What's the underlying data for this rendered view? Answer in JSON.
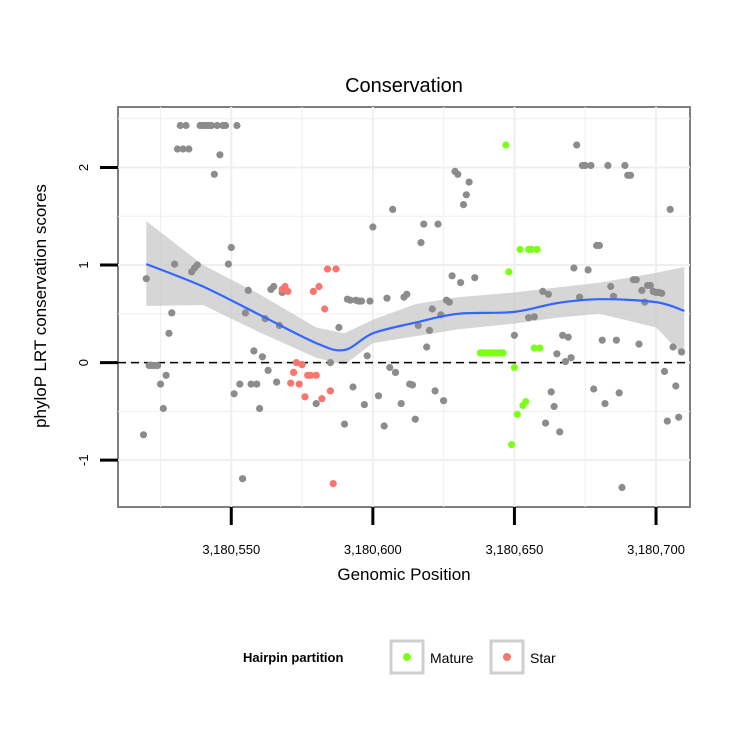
{
  "chart_data": {
    "type": "scatter",
    "title": "Conservation",
    "xlabel": "Genomic Position",
    "ylabel": "phyloP LRT conservation scores",
    "xlim": [
      3180510,
      3180712
    ],
    "ylim": [
      -1.48,
      2.62
    ],
    "x_ticks": [
      {
        "value": 3180550,
        "label": "3,180,550"
      },
      {
        "value": 3180600,
        "label": "3,180,600"
      },
      {
        "value": 3180650,
        "label": "3,180,650"
      },
      {
        "value": 3180700,
        "label": "3,180,700"
      }
    ],
    "y_ticks": [
      {
        "value": -1,
        "label": "-1"
      },
      {
        "value": 0,
        "label": "0"
      },
      {
        "value": 1,
        "label": "1"
      },
      {
        "value": 2,
        "label": "2"
      }
    ],
    "reference_line": {
      "y": 0,
      "style": "dashed"
    },
    "legend": {
      "title": "Hairpin partition",
      "position": "bottom",
      "entries": [
        {
          "label": "Mature",
          "color": "#7cff1a"
        },
        {
          "label": "Star",
          "color": "#f8766d"
        }
      ]
    },
    "colors": {
      "other": "#8c8c8c",
      "Mature": "#7cff1a",
      "Star": "#f8766d",
      "smooth_line": "#3366ff",
      "ribbon": "#c8c8c8"
    },
    "series": [
      {
        "name": "Other",
        "points": [
          [
            3180519,
            -0.74
          ],
          [
            3180520,
            0.86
          ],
          [
            3180521,
            -0.03
          ],
          [
            3180522,
            -0.03
          ],
          [
            3180523,
            -0.03
          ],
          [
            3180524,
            -0.03
          ],
          [
            3180525,
            -0.22
          ],
          [
            3180526,
            -0.47
          ],
          [
            3180527,
            -0.13
          ],
          [
            3180528,
            0.3
          ],
          [
            3180529,
            0.51
          ],
          [
            3180530,
            1.01
          ],
          [
            3180531,
            2.19
          ],
          [
            3180532,
            2.43
          ],
          [
            3180533,
            2.19
          ],
          [
            3180534,
            2.43
          ],
          [
            3180535,
            2.19
          ],
          [
            3180536,
            0.93
          ],
          [
            3180537,
            0.97
          ],
          [
            3180538,
            1.0
          ],
          [
            3180539,
            2.43
          ],
          [
            3180540,
            2.43
          ],
          [
            3180541,
            2.43
          ],
          [
            3180542,
            2.43
          ],
          [
            3180543,
            2.43
          ],
          [
            3180544,
            1.93
          ],
          [
            3180545,
            2.43
          ],
          [
            3180546,
            2.13
          ],
          [
            3180547,
            2.43
          ],
          [
            3180548,
            2.43
          ],
          [
            3180549,
            1.01
          ],
          [
            3180550,
            1.18
          ],
          [
            3180551,
            -0.32
          ],
          [
            3180552,
            2.43
          ],
          [
            3180553,
            -0.22
          ],
          [
            3180554,
            -1.19
          ],
          [
            3180555,
            0.51
          ],
          [
            3180556,
            0.74
          ],
          [
            3180557,
            -0.22
          ],
          [
            3180558,
            0.12
          ],
          [
            3180559,
            -0.22
          ],
          [
            3180560,
            -0.47
          ],
          [
            3180561,
            0.06
          ],
          [
            3180562,
            0.45
          ],
          [
            3180563,
            -0.08
          ],
          [
            3180564,
            0.75
          ],
          [
            3180565,
            0.78
          ],
          [
            3180566,
            -0.2
          ],
          [
            3180567,
            0.38
          ],
          [
            3180568,
            0.72
          ],
          [
            3180575,
            -0.02
          ],
          [
            3180580,
            -0.42
          ],
          [
            3180585,
            0.0
          ],
          [
            3180588,
            0.36
          ],
          [
            3180590,
            -0.63
          ],
          [
            3180591,
            0.65
          ],
          [
            3180592,
            0.64
          ],
          [
            3180593,
            -0.25
          ],
          [
            3180594,
            0.64
          ],
          [
            3180595,
            0.63
          ],
          [
            3180596,
            0.63
          ],
          [
            3180597,
            -0.43
          ],
          [
            3180598,
            0.07
          ],
          [
            3180599,
            0.63
          ],
          [
            3180600,
            1.39
          ],
          [
            3180602,
            -0.34
          ],
          [
            3180604,
            -0.65
          ],
          [
            3180605,
            0.66
          ],
          [
            3180606,
            -0.05
          ],
          [
            3180607,
            1.57
          ],
          [
            3180608,
            -0.1
          ],
          [
            3180610,
            -0.42
          ],
          [
            3180611,
            0.67
          ],
          [
            3180612,
            0.7
          ],
          [
            3180613,
            -0.22
          ],
          [
            3180614,
            -0.23
          ],
          [
            3180615,
            -0.58
          ],
          [
            3180616,
            0.38
          ],
          [
            3180617,
            1.23
          ],
          [
            3180618,
            1.42
          ],
          [
            3180619,
            0.16
          ],
          [
            3180620,
            0.33
          ],
          [
            3180621,
            0.55
          ],
          [
            3180622,
            -0.29
          ],
          [
            3180623,
            1.42
          ],
          [
            3180624,
            0.49
          ],
          [
            3180625,
            -0.39
          ],
          [
            3180626,
            0.64
          ],
          [
            3180627,
            0.62
          ],
          [
            3180628,
            0.89
          ],
          [
            3180629,
            1.96
          ],
          [
            3180630,
            1.93
          ],
          [
            3180631,
            0.82
          ],
          [
            3180632,
            1.62
          ],
          [
            3180633,
            1.72
          ],
          [
            3180634,
            1.85
          ],
          [
            3180636,
            0.87
          ],
          [
            3180638,
            0.1
          ],
          [
            3180650,
            0.28
          ],
          [
            3180655,
            0.46
          ],
          [
            3180657,
            0.47
          ],
          [
            3180660,
            0.73
          ],
          [
            3180661,
            -0.62
          ],
          [
            3180662,
            0.7
          ],
          [
            3180663,
            -0.3
          ],
          [
            3180664,
            -0.45
          ],
          [
            3180665,
            0.09
          ],
          [
            3180666,
            -0.71
          ],
          [
            3180667,
            0.28
          ],
          [
            3180668,
            0.01
          ],
          [
            3180669,
            0.26
          ],
          [
            3180670,
            0.05
          ],
          [
            3180671,
            0.97
          ],
          [
            3180672,
            2.23
          ],
          [
            3180673,
            0.67
          ],
          [
            3180674,
            2.02
          ],
          [
            3180675,
            2.02
          ],
          [
            3180676,
            0.95
          ],
          [
            3180677,
            2.02
          ],
          [
            3180678,
            -0.27
          ],
          [
            3180679,
            1.2
          ],
          [
            3180680,
            1.2
          ],
          [
            3180681,
            0.23
          ],
          [
            3180682,
            -0.42
          ],
          [
            3180683,
            2.02
          ],
          [
            3180684,
            0.78
          ],
          [
            3180685,
            0.68
          ],
          [
            3180686,
            0.23
          ],
          [
            3180687,
            -0.31
          ],
          [
            3180688,
            -1.28
          ],
          [
            3180689,
            2.02
          ],
          [
            3180690,
            1.92
          ],
          [
            3180691,
            1.92
          ],
          [
            3180692,
            0.85
          ],
          [
            3180693,
            0.85
          ],
          [
            3180694,
            0.19
          ],
          [
            3180695,
            0.74
          ],
          [
            3180696,
            0.62
          ],
          [
            3180697,
            0.79
          ],
          [
            3180698,
            0.79
          ],
          [
            3180699,
            0.73
          ],
          [
            3180700,
            0.72
          ],
          [
            3180701,
            0.72
          ],
          [
            3180702,
            0.71
          ],
          [
            3180703,
            -0.09
          ],
          [
            3180704,
            -0.6
          ],
          [
            3180705,
            1.57
          ],
          [
            3180706,
            0.16
          ],
          [
            3180707,
            -0.24
          ],
          [
            3180708,
            -0.56
          ],
          [
            3180709,
            0.11
          ]
        ]
      },
      {
        "name": "Mature",
        "points": [
          [
            3180638,
            0.1
          ],
          [
            3180639,
            0.1
          ],
          [
            3180640,
            0.1
          ],
          [
            3180641,
            0.1
          ],
          [
            3180642,
            0.1
          ],
          [
            3180643,
            0.1
          ],
          [
            3180644,
            0.1
          ],
          [
            3180645,
            0.1
          ],
          [
            3180646,
            0.1
          ],
          [
            3180647,
            2.23
          ],
          [
            3180648,
            0.93
          ],
          [
            3180649,
            -0.84
          ],
          [
            3180650,
            -0.05
          ],
          [
            3180651,
            -0.53
          ],
          [
            3180652,
            1.16
          ],
          [
            3180653,
            -0.44
          ],
          [
            3180654,
            -0.4
          ],
          [
            3180655,
            1.16
          ],
          [
            3180656,
            1.16
          ],
          [
            3180657,
            0.15
          ],
          [
            3180658,
            1.16
          ],
          [
            3180659,
            0.15
          ]
        ]
      },
      {
        "name": "Star",
        "points": [
          [
            3180568,
            0.75
          ],
          [
            3180569,
            0.78
          ],
          [
            3180570,
            0.73
          ],
          [
            3180571,
            -0.21
          ],
          [
            3180572,
            -0.1
          ],
          [
            3180573,
            0.0
          ],
          [
            3180574,
            -0.22
          ],
          [
            3180575,
            -0.02
          ],
          [
            3180576,
            -0.35
          ],
          [
            3180577,
            -0.13
          ],
          [
            3180578,
            -0.13
          ],
          [
            3180579,
            0.73
          ],
          [
            3180580,
            -0.13
          ],
          [
            3180581,
            0.78
          ],
          [
            3180582,
            -0.37
          ],
          [
            3180583,
            0.55
          ],
          [
            3180584,
            0.96
          ],
          [
            3180585,
            -0.29
          ],
          [
            3180586,
            -1.24
          ],
          [
            3180587,
            0.96
          ]
        ]
      }
    ],
    "smooth_fit": [
      [
        3180520,
        1.01
      ],
      [
        3180540,
        0.78
      ],
      [
        3180560,
        0.49
      ],
      [
        3180580,
        0.2
      ],
      [
        3180590,
        0.13
      ],
      [
        3180600,
        0.3
      ],
      [
        3180615,
        0.41
      ],
      [
        3180630,
        0.5
      ],
      [
        3180650,
        0.52
      ],
      [
        3180665,
        0.61
      ],
      [
        3180680,
        0.65
      ],
      [
        3180700,
        0.62
      ],
      [
        3180710,
        0.53
      ]
    ],
    "ribbon_upper": [
      [
        3180520,
        1.45
      ],
      [
        3180540,
        1.0
      ],
      [
        3180560,
        0.7
      ],
      [
        3180580,
        0.36
      ],
      [
        3180590,
        0.3
      ],
      [
        3180600,
        0.44
      ],
      [
        3180615,
        0.6
      ],
      [
        3180630,
        0.67
      ],
      [
        3180650,
        0.72
      ],
      [
        3180665,
        0.77
      ],
      [
        3180680,
        0.82
      ],
      [
        3180700,
        0.92
      ],
      [
        3180710,
        0.98
      ]
    ],
    "ribbon_lower": [
      [
        3180520,
        0.58
      ],
      [
        3180540,
        0.59
      ],
      [
        3180560,
        0.31
      ],
      [
        3180580,
        0.05
      ],
      [
        3180590,
        -0.02
      ],
      [
        3180600,
        0.2
      ],
      [
        3180615,
        0.27
      ],
      [
        3180630,
        0.34
      ],
      [
        3180650,
        0.4
      ],
      [
        3180665,
        0.46
      ],
      [
        3180680,
        0.5
      ],
      [
        3180700,
        0.36
      ],
      [
        3180710,
        0.06
      ]
    ]
  }
}
